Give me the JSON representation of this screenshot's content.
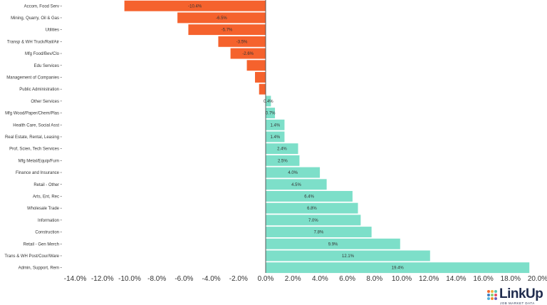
{
  "chart_data": {
    "type": "bar",
    "orientation": "horizontal",
    "categories": [
      "Accom, Food Serv",
      "Mining, Quarry, Oil & Gas",
      "Utilities",
      "Transp & WH Truck/Rail/Air",
      "Mfg Food/Bev/Clo",
      "Edu Services",
      "Management of Companies",
      "Public Administration",
      "Other Services",
      "Mfg Wood/Paper/Chem/Plas",
      "Health Care, Social Asst",
      "Real Estate, Rental, Leasing",
      "Prof, Scien, Tech Services",
      "Mfg Metal/Equip/Furn",
      "Finance and Insurance",
      "Retail - Other",
      "Arts, Ent, Rec",
      "Wholesale Trade",
      "Information",
      "Construction",
      "Retail - Gen Merch",
      "Trans & WH Post/Cour/Ware",
      "Admin, Support, Rem"
    ],
    "values": [
      -10.4,
      -6.5,
      -5.7,
      -3.5,
      -2.6,
      -1.4,
      -0.8,
      -0.5,
      0.4,
      0.7,
      1.4,
      1.4,
      2.4,
      2.5,
      4.0,
      4.5,
      6.4,
      6.8,
      7.0,
      7.8,
      9.9,
      12.1,
      19.4
    ],
    "data_labels": [
      "-10.4%",
      "-6.5%",
      "-5.7%",
      "-3.5%",
      "-2.6%",
      "",
      "",
      "",
      "0.4%",
      "0.7%",
      "1.4%",
      "1.4%",
      "2.4%",
      "2.5%",
      "4.0%",
      "4.5%",
      "6.4%",
      "6.8%",
      "7.0%",
      "7.8%",
      "9.9%",
      "12.1%",
      "19.4%"
    ],
    "x_ticks": [
      -14,
      -12,
      -10,
      -8,
      -6,
      -4,
      -2,
      0,
      2,
      4,
      6,
      8,
      10,
      12,
      14,
      16,
      18,
      20
    ],
    "x_tick_labels": [
      "-14.0%",
      "-12.0%",
      "-10.0%",
      "-8.0%",
      "-6.0%",
      "-4.0%",
      "-2.0%",
      "0.0%",
      "2.0%",
      "4.0%",
      "6.0%",
      "8.0%",
      "10.0%",
      "12.0%",
      "14.0%",
      "16.0%",
      "18.0%",
      "20.0%"
    ],
    "xlim": [
      -14,
      20
    ],
    "grid": false,
    "legend": "none",
    "colors": {
      "negative": "#f5622d",
      "positive": "#7ddfc9",
      "bar_edge": "#ffffff"
    }
  },
  "logo": {
    "text": "LinkUp",
    "subtext": "JOB MARKET DATA",
    "color": "#1f2b4d",
    "dot_colors": [
      "#f26a2e",
      "#f6b23c",
      "#5bc4b0",
      "#3d7fc1",
      "#8bcf6f",
      "#e94f64",
      "#52b3d9",
      "#f28b30",
      "#6d5fb8"
    ]
  }
}
